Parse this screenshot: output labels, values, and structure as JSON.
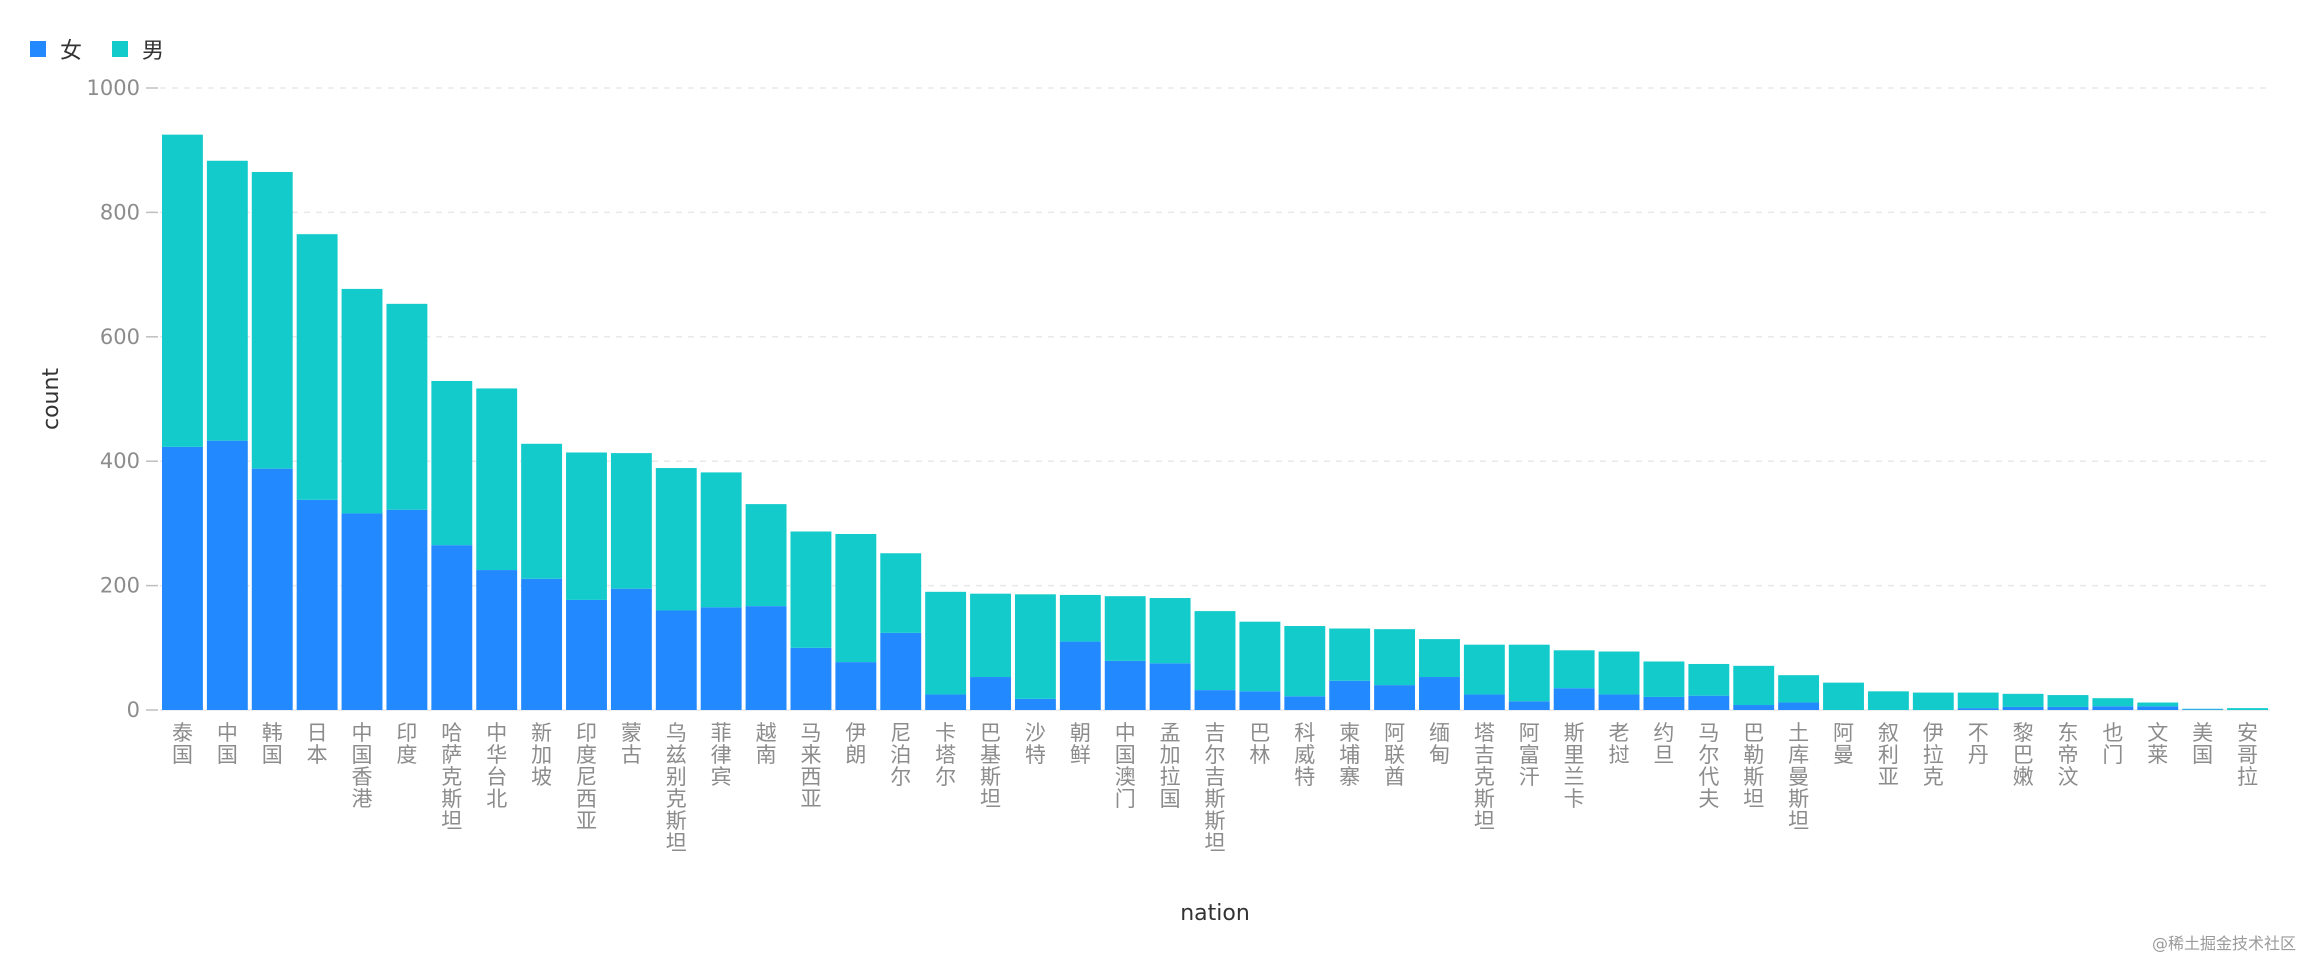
{
  "chart_data": {
    "type": "bar",
    "stacked": true,
    "xlabel": "nation",
    "ylabel": "count",
    "ylim": [
      0,
      1000
    ],
    "yticks": [
      0,
      200,
      400,
      600,
      800,
      1000
    ],
    "grid": "horizontal-dashed",
    "legend_position": "top-left",
    "categories": [
      "泰国",
      "中国",
      "韩国",
      "日本",
      "中国香港",
      "印度",
      "哈萨克斯坦",
      "中华台北",
      "新加坡",
      "印度尼西亚",
      "蒙古",
      "乌兹别克斯坦",
      "菲律宾",
      "越南",
      "马来西亚",
      "伊朗",
      "尼泊尔",
      "卡塔尔",
      "巴基斯坦",
      "沙特",
      "朝鲜",
      "中国澳门",
      "孟加拉国",
      "吉尔吉斯斯坦",
      "巴林",
      "科威特",
      "柬埔寨",
      "阿联酋",
      "缅甸",
      "塔吉克斯坦",
      "阿富汗",
      "斯里兰卡",
      "老挝",
      "约旦",
      "马尔代夫",
      "巴勒斯坦",
      "土库曼斯坦",
      "阿曼",
      "叙利亚",
      "伊拉克",
      "不丹",
      "黎巴嫩",
      "东帝汶",
      "也门",
      "文莱",
      "美国",
      "安哥拉"
    ],
    "series": [
      {
        "name": "女",
        "color": "#2389ff",
        "values": [
          423,
          433,
          388,
          338,
          316,
          322,
          265,
          225,
          211,
          177,
          195,
          160,
          165,
          167,
          100,
          77,
          124,
          25,
          53,
          18,
          110,
          79,
          75,
          32,
          30,
          22,
          47,
          40,
          53,
          25,
          14,
          35,
          25,
          21,
          23,
          8,
          12,
          0,
          0,
          0,
          3,
          5,
          5,
          6,
          6,
          1,
          0
        ]
      },
      {
        "name": "男",
        "color": "#13cbcb",
        "values": [
          502,
          450,
          477,
          427,
          361,
          331,
          264,
          292,
          217,
          237,
          218,
          229,
          217,
          164,
          187,
          206,
          128,
          165,
          134,
          168,
          75,
          104,
          105,
          127,
          112,
          113,
          84,
          90,
          61,
          80,
          91,
          61,
          69,
          57,
          51,
          63,
          44,
          44,
          30,
          28,
          25,
          21,
          19,
          13,
          6,
          1,
          3
        ]
      }
    ]
  },
  "watermark": "@稀土掘金技术社区"
}
